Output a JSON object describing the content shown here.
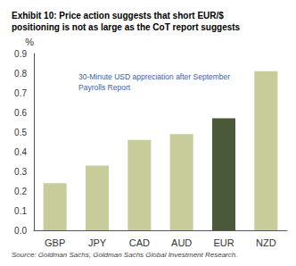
{
  "chart_data": {
    "type": "bar",
    "title": "Exhibit 10: Price action suggests that short EUR/$\npositioning is not as large as the CoT report suggests",
    "categories": [
      "GBP",
      "JPY",
      "CAD",
      "AUD",
      "EUR",
      "NZD"
    ],
    "values": [
      0.24,
      0.33,
      0.46,
      0.49,
      0.57,
      0.81
    ],
    "colors": [
      "#c8cc9a",
      "#c8cc9a",
      "#c8cc9a",
      "#c8cc9a",
      "#4a5937",
      "#c8cc9a"
    ],
    "ylabel": "%",
    "ylim": [
      0,
      0.9
    ],
    "yticks": [
      {
        "value": 0.0,
        "label": "0.0"
      },
      0.1,
      0.2,
      0.3,
      0.4,
      0.5,
      0.6,
      0.7,
      0.8,
      0.9
    ],
    "annotation": "30-Minute USD appreciation after September\nPayrolls Report",
    "annotation_color": "#3a5fa0",
    "source": "Source: Goldman Sachs, Goldman Sachs Global Investment Research.",
    "grid": false
  }
}
